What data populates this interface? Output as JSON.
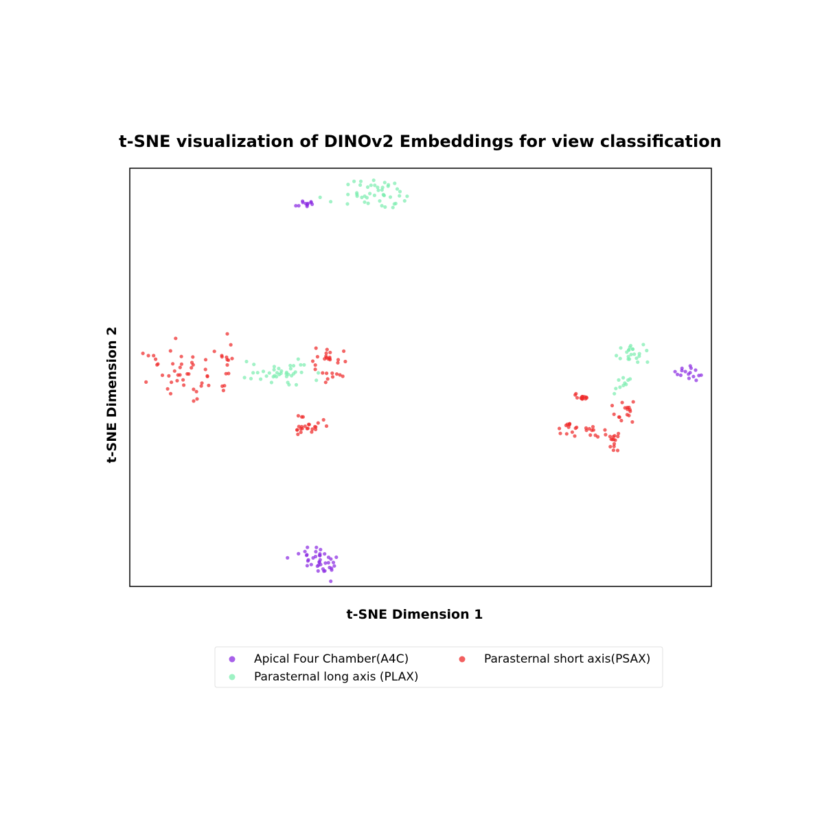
{
  "chart_data": {
    "type": "scatter",
    "title": "t-SNE visualization of DINOv2 Embeddings for view classification",
    "xlabel": "t-SNE Dimension 1",
    "ylabel": "t-SNE Dimension 2",
    "xlim": [
      -42,
      42
    ],
    "ylim": [
      -42,
      42
    ],
    "grid": false,
    "ticks": false,
    "legend": {
      "placement": "bottom-center",
      "columns": 2
    },
    "series": [
      {
        "name": "Apical Four Chamber(A4C)",
        "color": "#8a2be2",
        "clusters": [
          {
            "cx": -16.8,
            "cy": 34.8,
            "spread": [
              1.0,
              0.5
            ],
            "count": 12,
            "seed": 11
          },
          {
            "cx": -14.2,
            "cy": -36.8,
            "spread": [
              2.1,
              1.5
            ],
            "count": 40,
            "seed": 12
          },
          {
            "cx": 38.8,
            "cy": 0.8,
            "spread": [
              1.4,
              0.8
            ],
            "count": 16,
            "seed": 13
          }
        ]
      },
      {
        "name": "Parasternal long axis (PLAX)",
        "color": "#7dedb0",
        "clusters": [
          {
            "cx": -5.9,
            "cy": 36.7,
            "spread": [
              3.1,
              1.7
            ],
            "count": 45,
            "seed": 21
          },
          {
            "cx": -20.6,
            "cy": 0.7,
            "spread": [
              2.9,
              1.3
            ],
            "count": 40,
            "seed": 22
          },
          {
            "cx": 31.2,
            "cy": 4.6,
            "spread": [
              1.2,
              1.0
            ],
            "count": 22,
            "seed": 23
          },
          {
            "cx": 29.0,
            "cy": -1.6,
            "spread": [
              0.7,
              1.2
            ],
            "count": 10,
            "seed": 24
          }
        ]
      },
      {
        "name": "Parasternal short axis(PSAX)",
        "color": "#ee2a2a",
        "clusters": [
          {
            "cx": -34.0,
            "cy": 1.0,
            "spread": [
              4.2,
              3.5
            ],
            "count": 52,
            "seed": 31
          },
          {
            "cx": -27.6,
            "cy": 3.7,
            "spread": [
              0.6,
              0.2
            ],
            "count": 4,
            "seed": 32
          },
          {
            "cx": -13.4,
            "cy": 2.3,
            "spread": [
              1.3,
              2.1
            ],
            "count": 28,
            "seed": 33
          },
          {
            "cx": -16.4,
            "cy": -9.8,
            "spread": [
              1.3,
              1.2
            ],
            "count": 24,
            "seed": 34
          },
          {
            "cx": 23.3,
            "cy": -3.9,
            "spread": [
              0.6,
              1.0
            ],
            "count": 13,
            "seed": 35
          },
          {
            "cx": 29.4,
            "cy": -7.0,
            "spread": [
              1.2,
              1.2
            ],
            "count": 16,
            "seed": 36
          },
          {
            "cx": 23.1,
            "cy": -10.7,
            "spread": [
              1.6,
              0.8
            ],
            "count": 22,
            "seed": 37
          },
          {
            "cx": 27.5,
            "cy": -12.7,
            "spread": [
              0.6,
              1.7
            ],
            "count": 16,
            "seed": 38
          }
        ]
      }
    ]
  }
}
